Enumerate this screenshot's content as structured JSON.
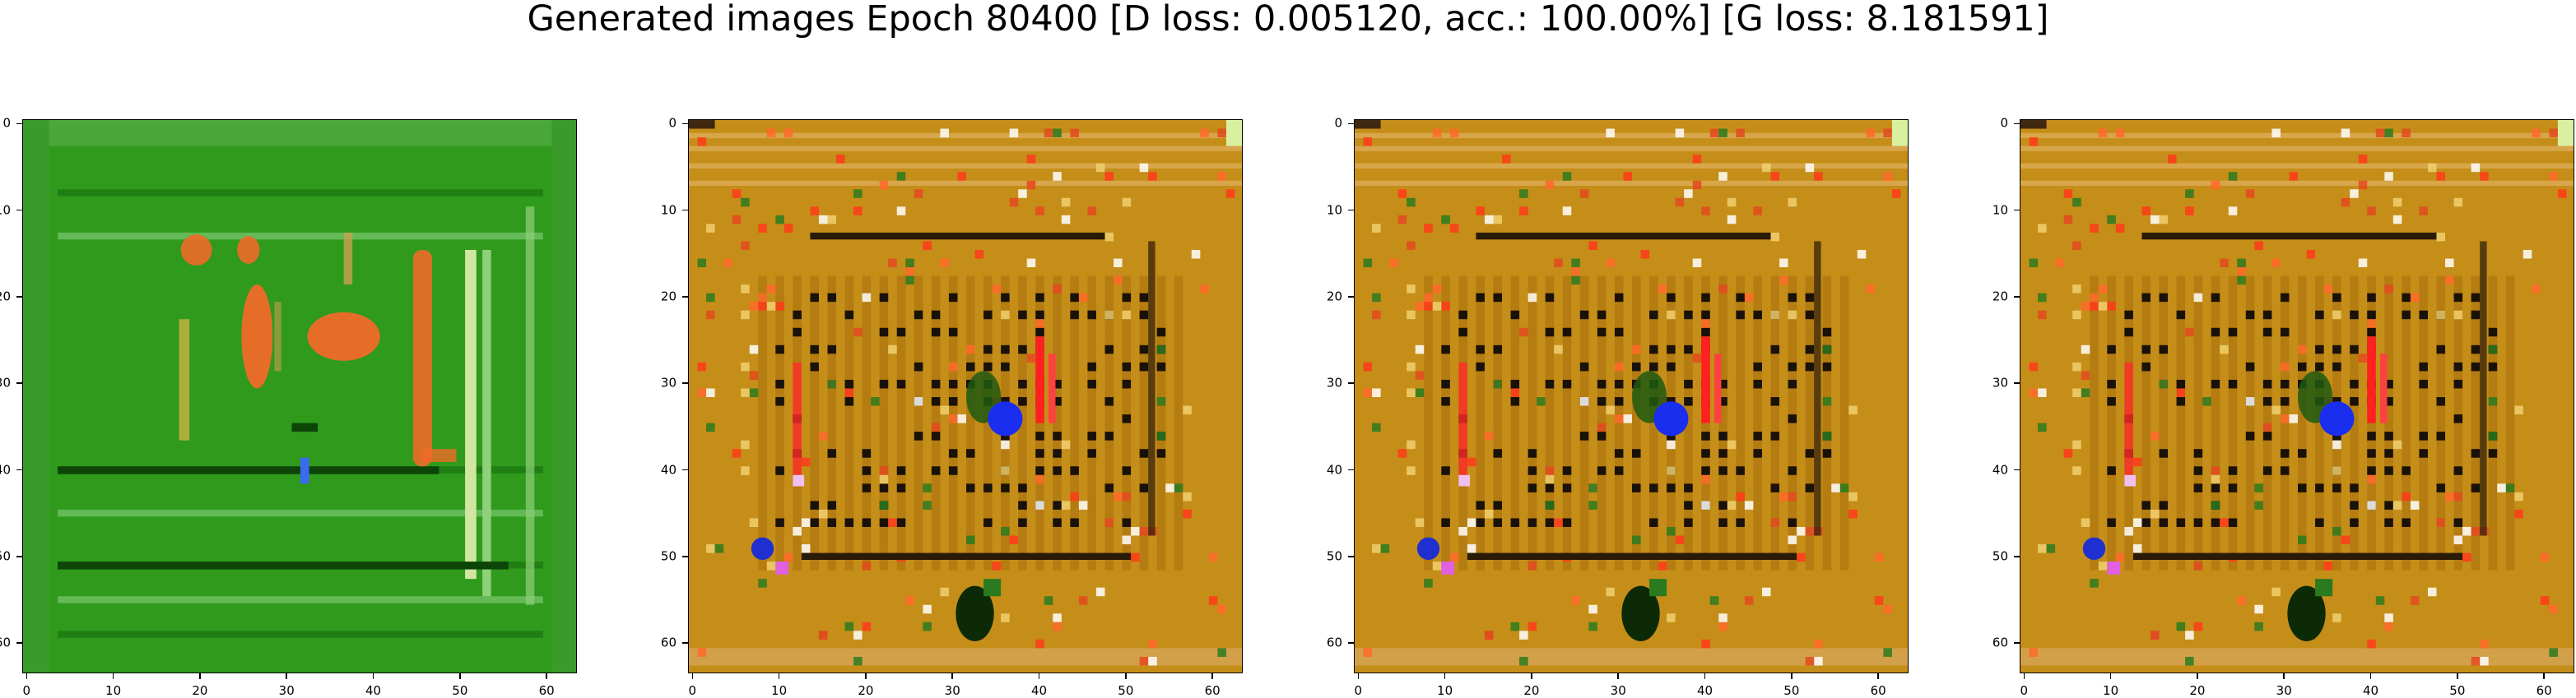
{
  "figure": {
    "suptitle": "Generated images Epoch 80400 [D loss: 0.005120, acc.: 100.00%] [G loss: 8.181591]"
  },
  "axes": {
    "x_ticks": [
      "0",
      "10",
      "20",
      "30",
      "40",
      "50",
      "60"
    ],
    "y_ticks": [
      "0",
      "10",
      "20",
      "30",
      "40",
      "50",
      "60"
    ]
  },
  "panels": [
    {
      "name": "generated-image-1",
      "style": "green"
    },
    {
      "name": "generated-image-2",
      "style": "amber"
    },
    {
      "name": "generated-image-3",
      "style": "amber"
    },
    {
      "name": "generated-image-4",
      "style": "amber"
    }
  ]
}
